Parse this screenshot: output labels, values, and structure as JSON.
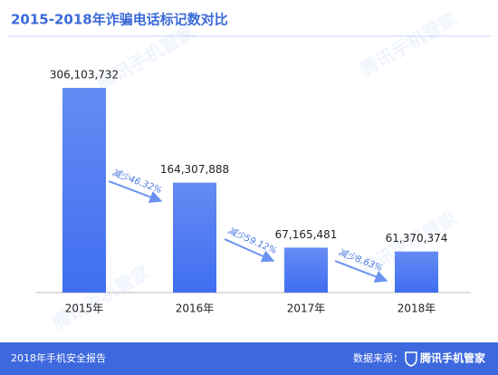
{
  "chart_data": {
    "type": "bar",
    "title": "2015-2018年诈骗电话标记数对比",
    "categories": [
      "2015年",
      "2016年",
      "2017年",
      "2018年"
    ],
    "values": [
      306103732,
      164307888,
      67165481,
      61370374
    ],
    "value_labels": [
      "306,103,732",
      "164,307,888",
      "67,165,481",
      "61,370,374"
    ],
    "color": "#3f6ef0",
    "annotations": [
      "减少46.32%",
      "减少59.12%",
      "减少8.63%"
    ]
  },
  "footer": {
    "left": "2018年手机安全报告",
    "source_label": "数据来源：",
    "source": "腾讯手机管家"
  },
  "watermark": "腾讯手机管家"
}
